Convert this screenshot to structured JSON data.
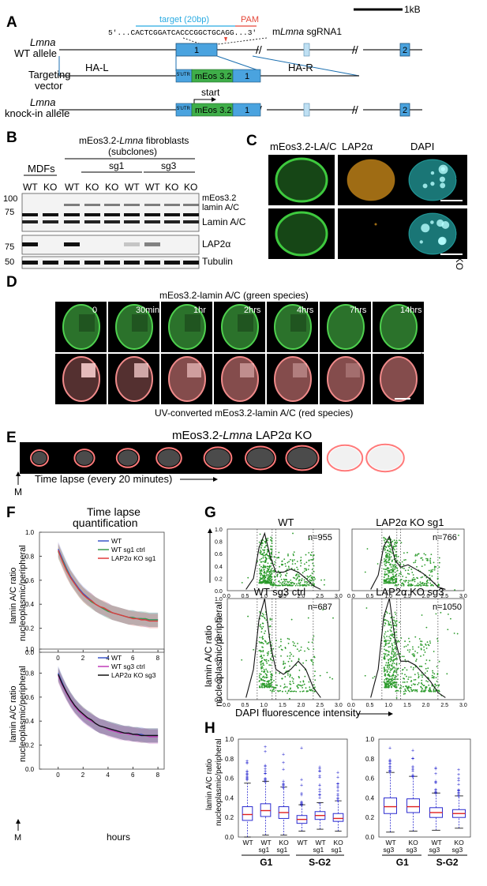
{
  "panel_letters": [
    "A",
    "B",
    "C",
    "D",
    "E",
    "F",
    "G",
    "H"
  ],
  "panelA": {
    "scale_bar": "1kB",
    "target": "target (20bp)",
    "pam": "PAM",
    "sequence": "5'...CACTCGGATCACCCGGCTGCAGG...3'",
    "sgrna_prefix": "m",
    "sgrna_italic": "Lmna",
    "sgrna_suffix": " sgRNA1",
    "wt_line1": "Lmna",
    "wt_line2": "WT allele",
    "tv_line1": "Targeting",
    "tv_line2": "vector",
    "ki_line1": "Lmna",
    "ki_line2": "knock-in allele",
    "ha_l": "HA-L",
    "ha_r": "HA-R",
    "exon1": "1",
    "exon2": "2",
    "utr": "5'UTR",
    "meos": "mEos 3.2",
    "start": "start"
  },
  "panelB": {
    "header": "mEos3.2-",
    "header_italic": "Lmna",
    "header_suffix": " fibroblasts",
    "subclones": "(subclones)",
    "mdfs": "MDFs",
    "sg1": "sg1",
    "sg3": "sg3",
    "lanes": [
      "WT",
      "KO",
      "WT",
      "KO",
      "KO",
      "WT",
      "WT",
      "KO",
      "KO"
    ],
    "mw": [
      "100",
      "75",
      "75",
      "50"
    ],
    "bands": [
      "mEos3.2",
      "lamin A/C",
      "Lamin A/C",
      "LAP2α",
      "Tubulin"
    ]
  },
  "panelC": {
    "cols": [
      "mEos3.2-LA/C",
      "LAP2α",
      "DAPI"
    ],
    "rows": [
      "WT",
      "LAP2α KO"
    ]
  },
  "panelD": {
    "title": "mEos3.2-lamin A/C (green species)",
    "times": [
      "0",
      "30min",
      "1hr",
      "2hrs",
      "4hrs",
      "7hrs",
      "14hrs"
    ],
    "side": "WT",
    "bottom": "UV-converted mEos3.2-lamin A/C (red species)"
  },
  "panelE": {
    "title_a": "mEos3.2-",
    "title_italic": "Lmna",
    "title_b": " LAP2α KO",
    "timelapse": "Time lapse (every 20 minutes)",
    "m": "M"
  },
  "panelF": {
    "title1": "Time lapse",
    "title2": "quantification",
    "ylabel1": "lamin A/C ratio",
    "ylabel2": "nucleoplasmic/peripheral",
    "xlabel": "hours",
    "m": "M",
    "legend_top": [
      "WT",
      "WT sg1 ctrl",
      "LAP2α KO sg1"
    ],
    "legend_bottom": [
      "WT",
      "WT sg3 ctrl",
      "LAP2α KO sg3"
    ],
    "yticks": [
      "0.0",
      "0.2",
      "0.4",
      "0.6",
      "0.8",
      "1.0"
    ],
    "xticks": [
      "0",
      "2",
      "4",
      "6",
      "8"
    ]
  },
  "panelG": {
    "titles": [
      "WT",
      "LAP2α KO sg1",
      "WT sg3 ctrl",
      "LAP2α KO sg3"
    ],
    "counts": [
      "n=955",
      "n=766",
      "n=687",
      "n=1050"
    ],
    "xlabel": "DAPI fluorescence intensity",
    "ylabel1": "lamin A/C ratio",
    "ylabel2": "nucleoplasmic/peripheral",
    "xticks": [
      "0.0",
      "0.5",
      "1.0",
      "1.5",
      "2.0",
      "2.5",
      "3.0"
    ],
    "yticks": [
      "0.0",
      "0.2",
      "0.4",
      "0.6",
      "0.8",
      "1.0"
    ]
  },
  "panelH": {
    "ylabel1": "lamin A/C ratio",
    "ylabel2": "nucleoplasmic/peripheral",
    "yticks": [
      "0.0",
      "0.2",
      "0.4",
      "0.6",
      "0.8",
      "1.0"
    ],
    "left_groups": [
      [
        "WT",
        ""
      ],
      [
        "WT",
        "sg1"
      ],
      [
        "KO",
        "sg1"
      ],
      [
        "WT",
        ""
      ],
      [
        "WT",
        "sg1"
      ],
      [
        "KO",
        "sg1"
      ]
    ],
    "right_groups": [
      [
        "WT",
        "sg3"
      ],
      [
        "KO",
        "sg3"
      ],
      [
        "WT",
        "sg3"
      ],
      [
        "KO",
        "sg3"
      ]
    ],
    "g1": "G1",
    "sg2": "S-G2"
  },
  "colors": {
    "exon": "#4aa3df",
    "meos": "#3fae49",
    "target": "#29abe2",
    "pam": "#e5483a",
    "wt": "#3b55c8",
    "sg_ctrl": "#3a9a4e",
    "ko1": "#e13a3a",
    "sg3_ctrl": "#c03ab8",
    "ko3": "#111111",
    "scatter": "#2a9a2a",
    "box": "#2b2bd0",
    "median": "#e02020"
  },
  "chart_data": [
    {
      "panel": "F-top",
      "type": "line",
      "title": "Time lapse quantification",
      "xlabel": "hours",
      "ylabel": "lamin A/C ratio nucleoplasmic/peripheral",
      "xlim": [
        -1.5,
        8.5
      ],
      "ylim": [
        0.0,
        1.0
      ],
      "x": [
        0,
        0.33,
        0.67,
        1,
        1.33,
        1.67,
        2,
        2.33,
        2.67,
        3,
        3.33,
        3.67,
        4,
        4.33,
        4.67,
        5,
        5.33,
        5.67,
        6,
        6.33,
        6.67,
        7,
        7.33,
        7.67,
        8
      ],
      "series": [
        {
          "name": "WT",
          "values": [
            0.86,
            0.78,
            0.7,
            0.63,
            0.58,
            0.53,
            0.49,
            0.46,
            0.43,
            0.4,
            0.38,
            0.36,
            0.35,
            0.33,
            0.32,
            0.31,
            0.3,
            0.29,
            0.29,
            0.28,
            0.28,
            0.27,
            0.27,
            0.27,
            0.27
          ]
        },
        {
          "name": "WT sg1 ctrl",
          "values": [
            0.84,
            0.77,
            0.69,
            0.62,
            0.57,
            0.52,
            0.48,
            0.45,
            0.42,
            0.4,
            0.38,
            0.36,
            0.34,
            0.33,
            0.32,
            0.31,
            0.3,
            0.29,
            0.29,
            0.28,
            0.28,
            0.28,
            0.27,
            0.27,
            0.27
          ]
        },
        {
          "name": "LAP2α KO sg1",
          "values": [
            0.85,
            0.76,
            0.68,
            0.62,
            0.57,
            0.52,
            0.48,
            0.45,
            0.43,
            0.4,
            0.38,
            0.37,
            0.35,
            0.33,
            0.32,
            0.31,
            0.3,
            0.29,
            0.28,
            0.28,
            0.27,
            0.27,
            0.26,
            0.26,
            0.26
          ]
        }
      ]
    },
    {
      "panel": "F-bottom",
      "type": "line",
      "xlabel": "hours",
      "ylabel": "lamin A/C ratio nucleoplasmic/peripheral",
      "xlim": [
        -1.5,
        8.5
      ],
      "ylim": [
        0.0,
        1.0
      ],
      "x": [
        0,
        0.33,
        0.67,
        1,
        1.33,
        1.67,
        2,
        2.33,
        2.67,
        3,
        3.33,
        3.67,
        4,
        4.33,
        4.67,
        5,
        5.33,
        5.67,
        6,
        6.33,
        6.67,
        7,
        7.33,
        7.67,
        8
      ],
      "series": [
        {
          "name": "WT",
          "values": [
            0.8,
            0.72,
            0.64,
            0.58,
            0.53,
            0.49,
            0.45,
            0.43,
            0.4,
            0.38,
            0.36,
            0.35,
            0.34,
            0.33,
            0.32,
            0.31,
            0.3,
            0.3,
            0.29,
            0.29,
            0.29,
            0.28,
            0.28,
            0.28,
            0.28
          ]
        },
        {
          "name": "WT sg3 ctrl",
          "values": [
            0.78,
            0.7,
            0.63,
            0.57,
            0.52,
            0.48,
            0.45,
            0.42,
            0.4,
            0.38,
            0.36,
            0.35,
            0.33,
            0.32,
            0.31,
            0.3,
            0.3,
            0.29,
            0.29,
            0.28,
            0.28,
            0.28,
            0.27,
            0.27,
            0.27
          ]
        },
        {
          "name": "LAP2α KO sg3",
          "values": [
            0.79,
            0.71,
            0.64,
            0.58,
            0.53,
            0.49,
            0.46,
            0.43,
            0.41,
            0.38,
            0.36,
            0.35,
            0.34,
            0.33,
            0.32,
            0.31,
            0.3,
            0.3,
            0.29,
            0.29,
            0.28,
            0.28,
            0.28,
            0.28,
            0.28
          ]
        }
      ]
    },
    {
      "panel": "G",
      "type": "scatter",
      "xlabel": "DAPI fluorescence intensity",
      "ylabel": "lamin A/C ratio nucleoplasmic/peripheral",
      "xlim": [
        0.0,
        3.0
      ],
      "ylim": [
        0.0,
        1.0
      ],
      "subplots": [
        {
          "title": "WT",
          "n": 955,
          "density_x": [
            0.5,
            0.7,
            0.85,
            1.0,
            1.15,
            1.3,
            1.5,
            1.7,
            1.9,
            2.1,
            2.3,
            2.5
          ],
          "density_y": [
            0.02,
            0.2,
            0.7,
            0.93,
            0.55,
            0.3,
            0.3,
            0.35,
            0.3,
            0.2,
            0.08,
            0.02
          ]
        },
        {
          "title": "LAP2α KO sg1",
          "n": 766,
          "density_x": [
            0.5,
            0.7,
            0.85,
            1.0,
            1.15,
            1.3,
            1.5,
            1.7,
            1.9,
            2.1,
            2.3,
            2.5
          ],
          "density_y": [
            0.02,
            0.25,
            0.72,
            0.88,
            0.5,
            0.38,
            0.42,
            0.35,
            0.28,
            0.18,
            0.06,
            0.02
          ]
        },
        {
          "title": "WT sg3 ctrl",
          "n": 687,
          "density_x": [
            0.5,
            0.7,
            0.85,
            1.0,
            1.15,
            1.3,
            1.5,
            1.7,
            1.9,
            2.1,
            2.3,
            2.5
          ],
          "density_y": [
            0.02,
            0.3,
            0.8,
            1.0,
            0.55,
            0.3,
            0.25,
            0.3,
            0.38,
            0.3,
            0.12,
            0.02
          ]
        },
        {
          "title": "LAP2α KO sg3",
          "n": 1050,
          "density_x": [
            0.5,
            0.7,
            0.85,
            1.0,
            1.15,
            1.3,
            1.5,
            1.7,
            1.9,
            2.1,
            2.3,
            2.5
          ],
          "density_y": [
            0.02,
            0.3,
            0.82,
            1.0,
            0.6,
            0.38,
            0.38,
            0.34,
            0.26,
            0.18,
            0.07,
            0.02
          ]
        }
      ]
    },
    {
      "panel": "H-left",
      "type": "box",
      "ylabel": "lamin A/C ratio nucleoplasmic/peripheral",
      "ylim": [
        0.0,
        1.0
      ],
      "categories": [
        "WT G1",
        "WT sg1 G1",
        "KO sg1 G1",
        "WT S-G2",
        "WT sg1 S-G2",
        "KO sg1 S-G2"
      ],
      "boxes": [
        {
          "q1": 0.17,
          "median": 0.23,
          "q3": 0.31,
          "wlo": 0.0,
          "whi": 0.55
        },
        {
          "q1": 0.21,
          "median": 0.27,
          "q3": 0.34,
          "wlo": 0.02,
          "whi": 0.57
        },
        {
          "q1": 0.19,
          "median": 0.25,
          "q3": 0.31,
          "wlo": 0.02,
          "whi": 0.51
        },
        {
          "q1": 0.14,
          "median": 0.18,
          "q3": 0.22,
          "wlo": 0.06,
          "whi": 0.33
        },
        {
          "q1": 0.18,
          "median": 0.22,
          "q3": 0.26,
          "wlo": 0.08,
          "whi": 0.35
        },
        {
          "q1": 0.16,
          "median": 0.19,
          "q3": 0.24,
          "wlo": 0.06,
          "whi": 0.37
        }
      ]
    },
    {
      "panel": "H-right",
      "type": "box",
      "ylim": [
        0.0,
        1.0
      ],
      "categories": [
        "WT sg3 G1",
        "KO sg3 G1",
        "WT sg3 S-G2",
        "KO sg3 S-G2"
      ],
      "boxes": [
        {
          "q1": 0.24,
          "median": 0.31,
          "q3": 0.4,
          "wlo": 0.05,
          "whi": 0.66
        },
        {
          "q1": 0.25,
          "median": 0.31,
          "q3": 0.39,
          "wlo": 0.06,
          "whi": 0.62
        },
        {
          "q1": 0.2,
          "median": 0.25,
          "q3": 0.3,
          "wlo": 0.07,
          "whi": 0.45
        },
        {
          "q1": 0.2,
          "median": 0.24,
          "q3": 0.28,
          "wlo": 0.09,
          "whi": 0.42
        }
      ]
    }
  ]
}
